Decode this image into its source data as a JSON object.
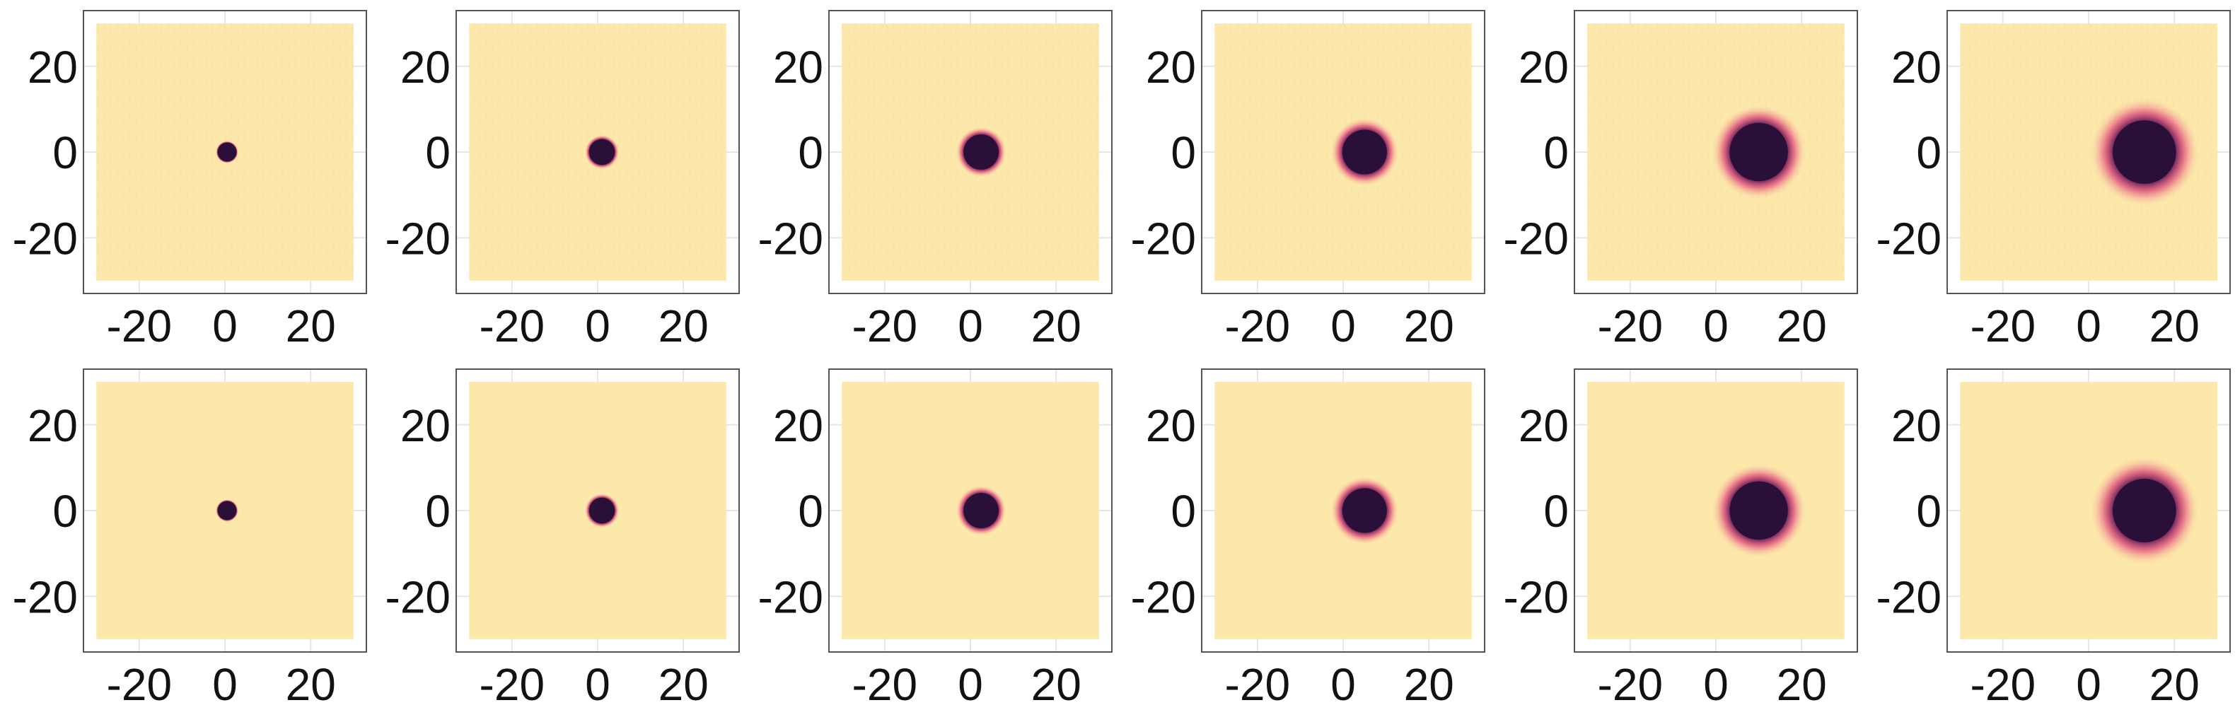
{
  "chart_data": {
    "type": "heatmap",
    "layout": {
      "rows": 2,
      "cols": 6
    },
    "shared_axes": {
      "xlim": [
        -33,
        33
      ],
      "ylim": [
        -33,
        33
      ],
      "domain": [
        -30,
        30
      ],
      "xticks": [
        -20,
        0,
        20
      ],
      "yticks": [
        -20,
        0,
        20
      ],
      "xtick_labels": [
        "-20",
        "0",
        "20"
      ],
      "ytick_labels": [
        "-20",
        "0",
        "20"
      ],
      "grid": true
    },
    "colors": {
      "background": "#fde8ab",
      "core": "#2a1038",
      "halo": "#e0457a",
      "frame": "#555555",
      "grid": "#e6e6e6"
    },
    "panels": [
      {
        "row": 1,
        "col": 1,
        "center": [
          0.5,
          0
        ],
        "radius": 2.2,
        "halo": 0.2,
        "texture": true
      },
      {
        "row": 1,
        "col": 2,
        "center": [
          1.0,
          0
        ],
        "radius": 3.0,
        "halo": 0.35,
        "texture": true
      },
      {
        "row": 1,
        "col": 3,
        "center": [
          2.5,
          0
        ],
        "radius": 4.1,
        "halo": 0.45,
        "texture": true
      },
      {
        "row": 1,
        "col": 4,
        "center": [
          5.0,
          0
        ],
        "radius": 5.2,
        "halo": 0.55,
        "texture": true
      },
      {
        "row": 1,
        "col": 5,
        "center": [
          10.0,
          0
        ],
        "radius": 6.8,
        "halo": 0.65,
        "texture": true
      },
      {
        "row": 1,
        "col": 6,
        "center": [
          13.0,
          0
        ],
        "radius": 7.4,
        "halo": 0.75,
        "texture": true
      },
      {
        "row": 2,
        "col": 1,
        "center": [
          0.5,
          0
        ],
        "radius": 2.2,
        "halo": 0.2,
        "texture": false
      },
      {
        "row": 2,
        "col": 2,
        "center": [
          1.0,
          0
        ],
        "radius": 3.0,
        "halo": 0.35,
        "texture": false
      },
      {
        "row": 2,
        "col": 3,
        "center": [
          2.5,
          0
        ],
        "radius": 4.1,
        "halo": 0.45,
        "texture": false
      },
      {
        "row": 2,
        "col": 4,
        "center": [
          5.0,
          0
        ],
        "radius": 5.2,
        "halo": 0.55,
        "texture": false
      },
      {
        "row": 2,
        "col": 5,
        "center": [
          10.0,
          0
        ],
        "radius": 6.8,
        "halo": 0.65,
        "texture": false
      },
      {
        "row": 2,
        "col": 6,
        "center": [
          13.0,
          0
        ],
        "radius": 7.4,
        "halo": 0.75,
        "texture": false
      }
    ]
  }
}
